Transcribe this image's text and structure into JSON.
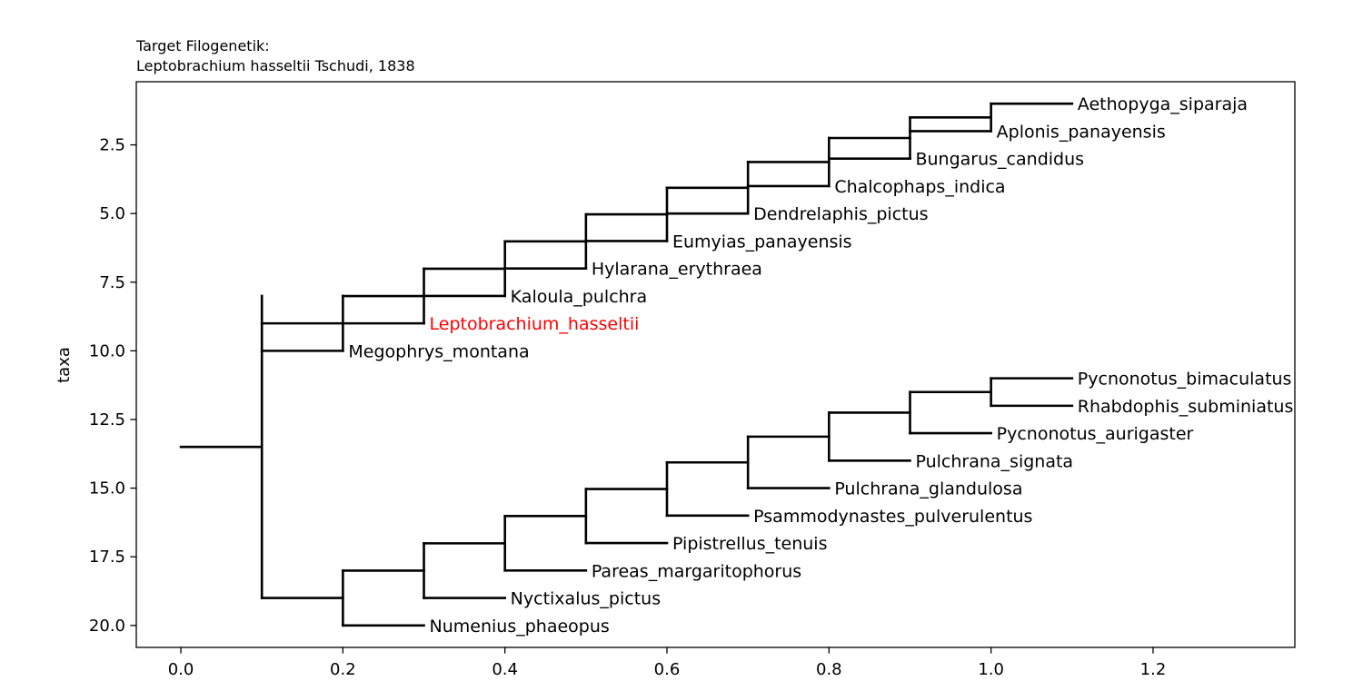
{
  "chart_data": {
    "type": "dendrogram",
    "title_lines": [
      "Target Filogenetik:",
      "Leptobrachium hasseltii Tschudi, 1838"
    ],
    "ylabel": "taxa",
    "xlim": [
      -0.055,
      1.375
    ],
    "ylim": [
      20.8,
      0.2
    ],
    "x_ticks": [
      0.0,
      0.2,
      0.4,
      0.6,
      0.8,
      1.0,
      1.2
    ],
    "x_tick_labels": [
      "0.0",
      "0.2",
      "0.4",
      "0.6",
      "0.8",
      "1.0",
      "1.2"
    ],
    "y_ticks": [
      2.5,
      5.0,
      7.5,
      10.0,
      12.5,
      15.0,
      17.5,
      20.0
    ],
    "y_tick_labels": [
      "2.5",
      "5.0",
      "7.5",
      "10.0",
      "12.5",
      "15.0",
      "17.5",
      "20.0"
    ],
    "grid": false,
    "highlight_color": "#ff0000",
    "line_color": "#000000",
    "leaves": [
      {
        "name": "Aethopyga_siparaja",
        "x": 1.1,
        "y": 1,
        "highlight": false
      },
      {
        "name": "Aplonis_panayensis",
        "x": 1.0,
        "y": 2,
        "highlight": false
      },
      {
        "name": "Bungarus_candidus",
        "x": 0.9,
        "y": 3,
        "highlight": false
      },
      {
        "name": "Chalcophaps_indica",
        "x": 0.8,
        "y": 4,
        "highlight": false
      },
      {
        "name": "Dendrelaphis_pictus",
        "x": 0.7,
        "y": 5,
        "highlight": false
      },
      {
        "name": "Eumyias_panayensis",
        "x": 0.6,
        "y": 6,
        "highlight": false
      },
      {
        "name": "Hylarana_erythraea",
        "x": 0.5,
        "y": 7,
        "highlight": false
      },
      {
        "name": "Kaloula_pulchra",
        "x": 0.4,
        "y": 8,
        "highlight": false
      },
      {
        "name": "Leptobrachium_hasseltii",
        "x": 0.3,
        "y": 9,
        "highlight": true
      },
      {
        "name": "Megophrys_montana",
        "x": 0.2,
        "y": 10,
        "highlight": false
      },
      {
        "name": "Pycnonotus_bimaculatus",
        "x": 1.1,
        "y": 11,
        "highlight": false
      },
      {
        "name": "Rhabdophis_subminiatus",
        "x": 1.1,
        "y": 12,
        "highlight": false
      },
      {
        "name": "Pycnonotus_aurigaster",
        "x": 1.0,
        "y": 13,
        "highlight": false
      },
      {
        "name": "Pulchrana_signata",
        "x": 0.9,
        "y": 14,
        "highlight": false
      },
      {
        "name": "Pulchrana_glandulosa",
        "x": 0.8,
        "y": 15,
        "highlight": false
      },
      {
        "name": "Psammodynastes_pulverulentus",
        "x": 0.7,
        "y": 16,
        "highlight": false
      },
      {
        "name": "Pipistrellus_tenuis",
        "x": 0.6,
        "y": 17,
        "highlight": false
      },
      {
        "name": "Pareas_margaritophorus",
        "x": 0.5,
        "y": 18,
        "highlight": false
      },
      {
        "name": "Nyctixalus_pictus",
        "x": 0.4,
        "y": 19,
        "highlight": false
      },
      {
        "name": "Numenius_phaeopus",
        "x": 0.3,
        "y": 20,
        "highlight": false
      }
    ],
    "internal_nodes": [
      {
        "x": 1.0,
        "y_top": 1,
        "y_bottom": 2,
        "parent_x": 0.9
      },
      {
        "x": 0.9,
        "y_top": 1.5,
        "y_bottom": 3,
        "parent_x": 0.8
      },
      {
        "x": 0.8,
        "y_top": 2.25,
        "y_bottom": 4,
        "parent_x": 0.7
      },
      {
        "x": 0.7,
        "y_top": 3.125,
        "y_bottom": 5,
        "parent_x": 0.6
      },
      {
        "x": 0.6,
        "y_top": 4.0625,
        "y_bottom": 6,
        "parent_x": 0.5
      },
      {
        "x": 0.5,
        "y_top": 5.03,
        "y_bottom": 7,
        "parent_x": 0.4
      },
      {
        "x": 0.4,
        "y_top": 6.02,
        "y_bottom": 8,
        "parent_x": 0.3
      },
      {
        "x": 0.3,
        "y_top": 7.01,
        "y_bottom": 9,
        "parent_x": 0.2
      },
      {
        "x": 0.2,
        "y_top": 8.0,
        "y_bottom": 10,
        "parent_x": 0.1
      },
      {
        "x": 1.0,
        "y_top": 11,
        "y_bottom": 12,
        "parent_x": 0.9
      },
      {
        "x": 0.9,
        "y_top": 11.5,
        "y_bottom": 13,
        "parent_x": 0.8
      },
      {
        "x": 0.8,
        "y_top": 12.25,
        "y_bottom": 14,
        "parent_x": 0.7
      },
      {
        "x": 0.7,
        "y_top": 13.125,
        "y_bottom": 15,
        "parent_x": 0.6
      },
      {
        "x": 0.6,
        "y_top": 14.0625,
        "y_bottom": 16,
        "parent_x": 0.5
      },
      {
        "x": 0.5,
        "y_top": 15.03,
        "y_bottom": 17,
        "parent_x": 0.4
      },
      {
        "x": 0.4,
        "y_top": 16.02,
        "y_bottom": 18,
        "parent_x": 0.3
      },
      {
        "x": 0.3,
        "y_top": 17.01,
        "y_bottom": 19,
        "parent_x": 0.2
      },
      {
        "x": 0.2,
        "y_top": 18.0,
        "y_bottom": 20,
        "parent_x": 0.1
      },
      {
        "x": 0.1,
        "y_top": 8.0,
        "y_bottom": 19.0,
        "parent_x": 0.0
      }
    ]
  }
}
